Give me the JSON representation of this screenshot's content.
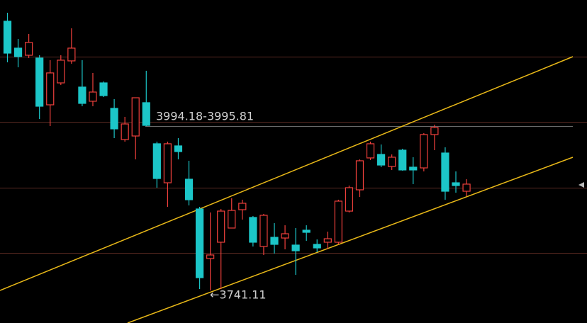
{
  "chart_data": {
    "type": "candlestick",
    "up_color": "#f0403c",
    "down_color": "#1cc6c8",
    "annotations": [
      "3994.18-3995.81",
      "←3741.11"
    ],
    "open": [
      4157.2,
      4115.6,
      4104.6,
      4100.3,
      4028.0,
      4061.9,
      4095.9,
      4055.4,
      4033.5,
      4061.9,
      4022.5,
      3974.3,
      3979.8,
      4031.3,
      3967.8,
      3907.5,
      3964.5,
      3913.0,
      3867.0,
      3790.4,
      3815.6,
      3837.5,
      3865.9,
      3853.9,
      3809.0,
      3823.2,
      3822.1,
      3811.2,
      3834.2,
      3812.3,
      3815.6,
      3815.6,
      3863.7,
      3896.6,
      3945.9,
      3951.3,
      3932.7,
      3957.9,
      3931.6,
      3930.5,
      3982.0,
      3953.5,
      3907.5,
      3894.4
    ],
    "high": [
      4170.3,
      4129.8,
      4137.5,
      4104.6,
      4097.0,
      4104.6,
      4146.3,
      4097.0,
      4077.3,
      4064.1,
      4036.8,
      4009.4,
      4038.9,
      4080.6,
      3971.1,
      3971.1,
      3976.5,
      3941.5,
      3870.3,
      3861.6,
      3867.0,
      3883.5,
      3881.3,
      3856.1,
      3859.4,
      3845.1,
      3841.8,
      3837.5,
      3841.8,
      3819.9,
      3832.0,
      3881.3,
      3903.2,
      3943.7,
      3971.1,
      3966.7,
      3951.3,
      3960.1,
      3947.0,
      3984.2,
      3997.3,
      3962.3,
      3925.1,
      3913.0
    ],
    "low": [
      4093.7,
      4086.0,
      4100.3,
      4006.1,
      3995.1,
      4058.7,
      4091.5,
      4025.8,
      4025.8,
      4040.0,
      3976.5,
      3971.1,
      3943.7,
      3995.1,
      3899.9,
      3870.3,
      3943.7,
      3872.5,
      3743.3,
      3741.11,
      3743.3,
      3837.5,
      3850.6,
      3809.0,
      3795.9,
      3798.0,
      3804.6,
      3765.2,
      3817.8,
      3800.2,
      3804.6,
      3812.3,
      3861.6,
      3885.6,
      3942.6,
      3931.6,
      3927.3,
      3926.2,
      3905.4,
      3925.1,
      3957.9,
      3881.3,
      3892.2,
      3886.7
    ],
    "close": [
      4107.9,
      4102.5,
      4124.4,
      4025.8,
      4077.3,
      4097.0,
      4115.6,
      4030.2,
      4047.7,
      4042.2,
      3990.8,
      3998.4,
      4038.9,
      3996.2,
      3914.1,
      3967.8,
      3955.7,
      3881.3,
      3760.8,
      3795.9,
      3863.7,
      3864.8,
      3875.8,
      3815.6,
      3857.2,
      3812.3,
      3828.7,
      3802.4,
      3830.9,
      3806.8,
      3821.0,
      3879.1,
      3899.9,
      3941.5,
      3967.8,
      3934.9,
      3947.0,
      3927.3,
      3927.3,
      3982.0,
      3993.0,
      3894.4,
      3903.2,
      3905.4
    ]
  }
}
